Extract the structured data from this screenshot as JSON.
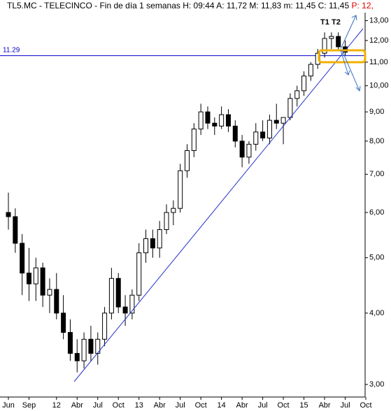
{
  "chart_data": {
    "type": "candlestick",
    "title": "TL5.MC - TELECINCO - Fin de día 1 semanas H: 09:44 A: 11,72 M: 11,83 m: 11,45 C: 11,45",
    "title_extra": "P: 12,",
    "title_extra_color": "#e00000",
    "categories": [
      "Jun",
      null,
      null,
      "Sep",
      null,
      null,
      null,
      "12",
      null,
      null,
      "Abr",
      null,
      null,
      "Jul",
      null,
      null,
      "Oct",
      null,
      null,
      "13",
      null,
      null,
      "Abr",
      null,
      null,
      "Jul",
      null,
      null,
      "Oct",
      null,
      null,
      "14",
      null,
      null,
      "Abr",
      null,
      null,
      "Jul",
      null,
      null,
      "Oct",
      null,
      null,
      "15",
      null,
      null,
      "Abr",
      null,
      null,
      "Jul",
      null,
      null,
      "Oct"
    ],
    "open": [
      6.0,
      5.9,
      5.3,
      4.7,
      4.5,
      4.8,
      4.3,
      4.4,
      4.0,
      3.7,
      3.4,
      3.3,
      3.6,
      3.4,
      3.6,
      4.0,
      4.6,
      4.1,
      4.0,
      4.3,
      5.1,
      5.4,
      5.2,
      5.6,
      6.0,
      6.1,
      7.1,
      7.7,
      8.4,
      9.0,
      8.6,
      8.5,
      8.9,
      8.5,
      8.0,
      7.5,
      7.9,
      8.3,
      8.1,
      8.7,
      8.6,
      8.8,
      9.5,
      9.8,
      10.4,
      10.9,
      11.4,
      12.1,
      12.2,
      11.7,
      null,
      null,
      null
    ],
    "high": [
      6.5,
      6.1,
      5.5,
      5.2,
      5.0,
      4.9,
      4.6,
      4.7,
      4.3,
      3.9,
      3.6,
      3.7,
      3.8,
      3.7,
      4.1,
      4.8,
      4.7,
      4.3,
      4.4,
      5.3,
      5.6,
      5.6,
      5.8,
      6.2,
      6.3,
      7.3,
      7.9,
      8.6,
      9.3,
      9.2,
      8.8,
      9.2,
      9.1,
      8.7,
      8.2,
      8.0,
      8.6,
      8.7,
      8.9,
      9.3,
      8.8,
      9.7,
      10.0,
      10.6,
      11.0,
      11.6,
      12.4,
      12.4,
      12.4,
      12.0,
      null,
      null,
      null
    ],
    "low": [
      5.6,
      5.1,
      4.3,
      4.2,
      4.2,
      4.1,
      4.0,
      3.9,
      3.6,
      3.3,
      3.15,
      3.2,
      3.3,
      3.25,
      3.5,
      3.9,
      4.0,
      3.8,
      3.9,
      4.2,
      4.9,
      5.0,
      5.0,
      5.5,
      5.7,
      6.0,
      6.9,
      7.5,
      8.2,
      8.4,
      8.2,
      8.4,
      8.3,
      7.8,
      7.2,
      7.3,
      7.7,
      8.0,
      7.9,
      8.4,
      7.9,
      8.7,
      9.2,
      9.6,
      10.2,
      10.7,
      11.2,
      11.6,
      11.5,
      11.3,
      null,
      null,
      null
    ],
    "close": [
      5.9,
      5.3,
      4.7,
      4.5,
      4.8,
      4.3,
      4.4,
      4.0,
      3.7,
      3.4,
      3.3,
      3.6,
      3.4,
      3.6,
      4.0,
      4.6,
      4.1,
      4.0,
      4.3,
      5.1,
      5.4,
      5.2,
      5.6,
      6.0,
      6.1,
      7.1,
      7.7,
      8.4,
      9.0,
      8.6,
      8.5,
      8.9,
      8.5,
      8.0,
      7.5,
      7.9,
      8.3,
      8.1,
      8.7,
      8.6,
      8.8,
      9.5,
      9.8,
      10.4,
      10.9,
      11.4,
      12.1,
      12.2,
      11.7,
      11.45,
      null,
      null,
      null
    ],
    "log_scale": true,
    "ylim": [
      2.86,
      13.43
    ],
    "yticks": [
      {
        "value": 3,
        "label": "3,00"
      },
      {
        "value": 4,
        "label": "4,00"
      },
      {
        "value": 5,
        "label": "5,00"
      },
      {
        "value": 6,
        "label": "6,00"
      },
      {
        "value": 7,
        "label": "7,00"
      },
      {
        "value": 8,
        "label": "8,00"
      },
      {
        "value": 9,
        "label": "9,00"
      },
      {
        "value": 10,
        "label": "10,00"
      },
      {
        "value": 11,
        "label": "11,00"
      },
      {
        "value": 12,
        "label": "12,00"
      },
      {
        "value": 13,
        "label": "13,00"
      }
    ],
    "hline": {
      "value": 11.29,
      "color": "#0000cc"
    },
    "annotations": [
      "T1",
      "T2"
    ],
    "up_color": "#ffffff",
    "down_color": "#000000"
  }
}
